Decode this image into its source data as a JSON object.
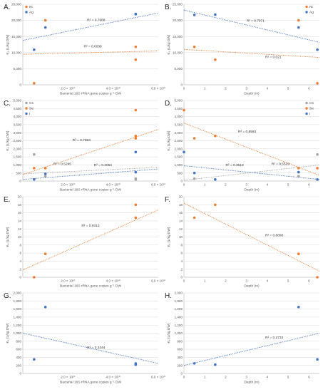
{
  "colors": {
    "orange": "#ED7D31",
    "blue": "#4472C4",
    "gray": "#A5A5A5",
    "grid": "#D9D9D9",
    "axis": "#BFBFBF"
  },
  "chart_data": [
    {
      "id": "A",
      "panel_label": "A.",
      "type": "scatter",
      "xlabel": "Bacterial 16S rRNA gene copies g⁻¹ DW",
      "ylabel": "Kₑ (L/kg DW)",
      "xlim": [
        0,
        60000000000
      ],
      "ylim": [
        0,
        25000
      ],
      "yticks": [
        0,
        5000,
        10000,
        15000,
        20000,
        25000
      ],
      "ytick_labels": [
        "0",
        "5,000",
        "10,000",
        "15,000",
        "20,000",
        "25,000"
      ],
      "xticks": [
        20000000000,
        40000000000,
        60000000000
      ],
      "xtick_labels": [
        "2.0 × 10¹⁰",
        "4.0 × 10¹⁰",
        "6.0 × 10¹⁰"
      ],
      "legend_position": "top-left",
      "series": [
        {
          "name": "Ni",
          "color": "orange",
          "x": [
            5000000000,
            10000000000,
            50000000000,
            50000000000
          ],
          "y": [
            500,
            20000,
            11800,
            7800
          ],
          "trend": [
            9500,
            10500
          ],
          "r2": "R² = 0.0039",
          "r2_at": [
            27000000000,
            11600
          ]
        },
        {
          "name": "Ag",
          "color": "blue",
          "x": [
            5000000000,
            10000000000,
            50000000000,
            50000000000
          ],
          "y": [
            10900,
            17800,
            21900,
            22000
          ],
          "trend": [
            13800,
            22300
          ],
          "r2": "R² = 0.7668",
          "r2_at": [
            28500000000,
            19800
          ]
        }
      ]
    },
    {
      "id": "B",
      "panel_label": "B.",
      "type": "scatter",
      "xlabel": "Depth (m)",
      "ylabel": "Kₑ (L/kg DW)",
      "xlim": [
        0,
        6.5
      ],
      "ylim": [
        0,
        25000
      ],
      "yticks": [
        0,
        5000,
        10000,
        15000,
        20000,
        25000
      ],
      "ytick_labels": [
        "0",
        "5,000",
        "10,000",
        "15,000",
        "20,000",
        "25,000"
      ],
      "xticks": [
        0,
        1,
        2,
        3,
        4,
        5,
        6
      ],
      "xtick_labels": [
        "0",
        "1",
        "2",
        "3",
        "4",
        "5",
        "6"
      ],
      "legend_position": "top-right",
      "series": [
        {
          "name": "Ni",
          "color": "orange",
          "x": [
            0.5,
            1.5,
            5.5,
            6.4
          ],
          "y": [
            11800,
            7800,
            20000,
            500
          ],
          "trend": [
            11000,
            8500
          ],
          "r2": "R² = 0.021",
          "r2_at": [
            3.9,
            8300
          ]
        },
        {
          "name": "Ag",
          "color": "blue",
          "x": [
            0.5,
            1.5,
            5.5,
            6.4
          ],
          "y": [
            21700,
            21800,
            17800,
            10900
          ],
          "trend": [
            23200,
            13200
          ],
          "r2": "R² = 0.7971",
          "r2_at": [
            3.0,
            19600
          ]
        }
      ]
    },
    {
      "id": "C",
      "panel_label": "C.",
      "type": "scatter",
      "xlabel": "Bacterial 16S rRNA gene copies g⁻¹ DW",
      "ylabel": "Kₑ (L/kg DW)",
      "xlim": [
        0,
        60000000000
      ],
      "ylim": [
        0,
        5000
      ],
      "yticks": [
        0,
        500,
        1000,
        1500,
        2000,
        2500,
        3000,
        3500,
        4000,
        4500,
        5000
      ],
      "ytick_labels": [
        "0",
        "500",
        "1,000",
        "1,500",
        "2,000",
        "2,500",
        "3,000",
        "3,500",
        "4,000",
        "4,500",
        "5,000"
      ],
      "xticks": [
        20000000000,
        40000000000,
        60000000000
      ],
      "xtick_labels": [
        "2.0 × 10¹⁰",
        "4.0 × 10¹⁰",
        "6.0 × 10¹⁰"
      ],
      "legend_position": "top-left",
      "series": [
        {
          "name": "Cs",
          "color": "gray",
          "x": [
            5000000000,
            10000000000,
            50000000000,
            50000000000
          ],
          "y": [
            1650,
            300,
            150,
            100
          ],
          "trend": [
            450,
            850
          ],
          "r2": "R² = 0.5245",
          "r2_at": [
            13500000000,
            1000
          ]
        },
        {
          "name": "Se",
          "color": "orange",
          "x": [
            5000000000,
            10000000000,
            50000000000,
            50000000000,
            50000000000
          ],
          "y": [
            800,
            800,
            4400,
            2800,
            2650
          ],
          "trend": [
            400,
            3200
          ],
          "r2": "R² = 0.7863",
          "r2_at": [
            22000000000,
            2480
          ]
        },
        {
          "name": "I",
          "color": "blue",
          "x": [
            5000000000,
            10000000000,
            50000000000,
            50000000000
          ],
          "y": [
            100,
            450,
            1800,
            550
          ],
          "trend": [
            100,
            750
          ],
          "r2": "R² = 0.2064",
          "r2_at": [
            31500000000,
            920
          ]
        }
      ]
    },
    {
      "id": "D",
      "panel_label": "D.",
      "type": "scatter",
      "xlabel": "Depth (m)",
      "ylabel": "Kₑ (L/kg DW)",
      "xlim": [
        0,
        6.5
      ],
      "ylim": [
        0,
        5000
      ],
      "yticks": [
        0,
        500,
        1000,
        1500,
        2000,
        2500,
        3000,
        3500,
        4000,
        4500,
        5000
      ],
      "ytick_labels": [
        "0",
        "500",
        "1,000",
        "1,500",
        "2,000",
        "2,500",
        "3,000",
        "3,500",
        "4,000",
        "4,500",
        "5,000"
      ],
      "xticks": [
        0,
        1,
        2,
        3,
        4,
        5,
        6
      ],
      "xtick_labels": [
        "0",
        "1",
        "2",
        "3",
        "4",
        "5",
        "6"
      ],
      "legend_position": "top-right",
      "series": [
        {
          "name": "Cs",
          "color": "gray",
          "x": [
            0.5,
            1.5,
            5.5,
            6.4
          ],
          "y": [
            150,
            100,
            300,
            1650
          ],
          "trend": [
            50,
            1000
          ],
          "r2": "R² = 0.5529",
          "r2_at": [
            4.2,
            1000
          ]
        },
        {
          "name": "Se",
          "color": "orange",
          "x": [
            0,
            0.5,
            1.5,
            5.5,
            6.4
          ],
          "y": [
            4400,
            2650,
            2800,
            800,
            800
          ],
          "trend": [
            3600,
            350
          ],
          "r2": "R² = 0.8593",
          "r2_at": [
            2.6,
            3000
          ]
        },
        {
          "name": "I",
          "color": "blue",
          "x": [
            0,
            0.5,
            1.5,
            5.5,
            6.4
          ],
          "y": [
            1800,
            500,
            100,
            550,
            100
          ],
          "trend": [
            950,
            100
          ],
          "r2": "R² = 0.3513",
          "r2_at": [
            2.0,
            920
          ]
        }
      ]
    },
    {
      "id": "E",
      "panel_label": "E.",
      "type": "scatter",
      "xlabel": "Bacterial 16S rRNA gene copies g⁻¹ DW",
      "ylabel": "Kₑ (L/kg DW)",
      "xlim": [
        0,
        60000000000
      ],
      "ylim": [
        0,
        20
      ],
      "yticks": [
        0,
        2,
        4,
        6,
        8,
        10,
        12,
        14,
        16,
        18,
        20
      ],
      "ytick_labels": [
        "0",
        "2",
        "4",
        "6",
        "8",
        "10",
        "12",
        "14",
        "16",
        "18",
        "20"
      ],
      "xticks": [
        20000000000,
        40000000000,
        60000000000
      ],
      "xtick_labels": [
        "2.0 × 10¹⁰",
        "4.0 × 10¹⁰",
        "6.0 × 10¹⁰"
      ],
      "legend_position": "none",
      "series": [
        {
          "name": "",
          "color": "orange",
          "x": [
            5000000000,
            10000000000,
            50000000000,
            50000000000
          ],
          "y": [
            0,
            5.8,
            18,
            14.8
          ],
          "trend": [
            1.8,
            16.7
          ],
          "r2": "R² = 0.9313",
          "r2_at": [
            26000000000,
            12.6
          ]
        }
      ]
    },
    {
      "id": "F",
      "panel_label": "F.",
      "type": "scatter",
      "xlabel": "Depth (m)",
      "ylabel": "Kₑ (L/kg DW)",
      "xlim": [
        0,
        6.5
      ],
      "ylim": [
        0,
        20
      ],
      "yticks": [
        0,
        2,
        4,
        6,
        8,
        10,
        12,
        14,
        16,
        18,
        20
      ],
      "ytick_labels": [
        "0",
        "2",
        "4",
        "6",
        "8",
        "10",
        "12",
        "14",
        "16",
        "18",
        "20"
      ],
      "xticks": [
        0,
        1,
        2,
        3,
        4,
        5,
        6
      ],
      "xtick_labels": [
        "0",
        "1",
        "2",
        "3",
        "4",
        "5",
        "6"
      ],
      "legend_position": "none",
      "series": [
        {
          "name": "",
          "color": "orange",
          "x": [
            0.5,
            1.5,
            5.5,
            6.4
          ],
          "y": [
            14.8,
            18,
            5.8,
            0
          ],
          "trend": [
            18.4,
            1.5
          ],
          "r2": "R² = 0.8898",
          "r2_at": [
            3.9,
            10.2
          ]
        }
      ]
    },
    {
      "id": "G",
      "panel_label": "G.",
      "type": "scatter",
      "xlabel": "Bacterial 16S rRNA gene copies g⁻¹ DW",
      "ylabel": "Kₑ (L/kg DW)",
      "xlim": [
        0,
        60000000000
      ],
      "ylim": [
        0,
        2000
      ],
      "yticks": [
        0,
        200,
        400,
        600,
        800,
        1000,
        1200,
        1400,
        1600,
        1800,
        2000
      ],
      "ytick_labels": [
        "0",
        "200",
        "400",
        "600",
        "800",
        "1,000",
        "1,200",
        "1,400",
        "1,600",
        "1,800",
        "2,000"
      ],
      "xticks": [
        20000000000,
        40000000000,
        60000000000
      ],
      "xtick_labels": [
        "2.0 × 10¹⁰",
        "4.0 × 10¹⁰",
        "6.0 × 10¹⁰"
      ],
      "legend_position": "none",
      "series": [
        {
          "name": "",
          "color": "blue",
          "x": [
            5000000000,
            10000000000,
            50000000000,
            50000000000
          ],
          "y": [
            350,
            1650,
            250,
            220
          ],
          "trend": [
            1000,
            250
          ],
          "r2": "R² = 0.3344",
          "r2_at": [
            28500000000,
            620
          ]
        }
      ]
    },
    {
      "id": "H",
      "panel_label": "H.",
      "type": "scatter",
      "xlabel": "Depth (m)",
      "ylabel": "Kₑ (L/kg DW)",
      "xlim": [
        0,
        6.5
      ],
      "ylim": [
        0,
        2000
      ],
      "yticks": [
        0,
        200,
        400,
        600,
        800,
        1000,
        1200,
        1400,
        1600,
        1800,
        2000
      ],
      "ytick_labels": [
        "0",
        "200",
        "400",
        "600",
        "800",
        "1,000",
        "1,200",
        "1,400",
        "1,600",
        "1,800",
        "2,000"
      ],
      "xticks": [
        0,
        1,
        2,
        3,
        4,
        5,
        6
      ],
      "xtick_labels": [
        "0",
        "1",
        "2",
        "3",
        "4",
        "5",
        "6"
      ],
      "legend_position": "none",
      "series": [
        {
          "name": "",
          "color": "blue",
          "x": [
            0.5,
            1.5,
            5.5,
            6.4
          ],
          "y": [
            250,
            220,
            1650,
            350
          ],
          "trend": [
            200,
            1000
          ],
          "r2": "R² = 0.2733",
          "r2_at": [
            3.9,
            870
          ]
        }
      ]
    }
  ]
}
